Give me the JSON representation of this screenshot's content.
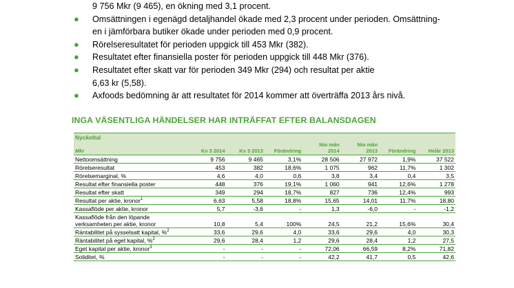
{
  "bullets": [
    {
      "has_dot": false,
      "lines": [
        "9 756 Mkr (9 465), en ökning med 3,1 procent."
      ]
    },
    {
      "has_dot": true,
      "lines": [
        "Omsättningen i egenägd detaljhandel ökade med 2,3 procent under perioden. Omsättning-",
        "en i jämförbara butiker ökade under perioden med 0,9 procent."
      ]
    },
    {
      "has_dot": true,
      "lines": [
        "Rörelseresultatet för perioden uppgick till 453 Mkr (382)."
      ]
    },
    {
      "has_dot": true,
      "lines": [
        "Resultatet efter finansiella poster för perioden uppgick till 448 Mkr (376)."
      ]
    },
    {
      "has_dot": true,
      "lines": [
        "Resultatet efter skatt var för perioden 349 Mkr (294) och resultat per aktie",
        "6,63 kr (5,58)."
      ]
    },
    {
      "has_dot": true,
      "lines": [
        "Axfoods bedömning är att resultatet för 2014 kommer att överträffa 2013 års nivå."
      ]
    }
  ],
  "heading": "INGA VÄSENTLIGA HÄNDELSER HAR INTRÄFFAT EFTER BALANSDAGEN",
  "table": {
    "title": "Nyckeltal",
    "unit": "Mkr",
    "columns": [
      "Kv 3 2014",
      "Kv 3 2013",
      "Förändring",
      "Nio mån 2014",
      "Nio mån 2013",
      "Förändring",
      "Helår 2013"
    ],
    "rows": [
      {
        "label": "Nettoomsättning",
        "sup": "",
        "values": [
          "9 756",
          "9 465",
          "3,1%",
          "28 506",
          "27 972",
          "1,9%",
          "37 522"
        ]
      },
      {
        "label": "Rörelseresultat",
        "sup": "",
        "values": [
          "453",
          "382",
          "18,6%",
          "1 075",
          "962",
          "11,7%",
          "1 302"
        ]
      },
      {
        "label": "Rörelsemarginal, %",
        "sup": "",
        "values": [
          "4,6",
          "4,0",
          "0,6",
          "3,8",
          "3,4",
          "0,4",
          "3,5"
        ]
      },
      {
        "label": "Resultat efter finansiella poster",
        "sup": "",
        "values": [
          "448",
          "376",
          "19,1%",
          "1 060",
          "941",
          "12,6%",
          "1 278"
        ]
      },
      {
        "label": "Resultat efter skatt",
        "sup": "",
        "values": [
          "349",
          "294",
          "18,7%",
          "827",
          "736",
          "12,4%",
          "993"
        ]
      },
      {
        "label": "Resultat per aktie, kronor",
        "sup": "1",
        "values": [
          "6,63",
          "5,58",
          "18,8%",
          "15,65",
          "14,01",
          "11,7%",
          "18,80"
        ]
      },
      {
        "label": "Kassaflöde per aktie, kronor",
        "sup": "",
        "values": [
          "5,7",
          "-3,6",
          "-",
          "1,3",
          "-6,0",
          "-",
          "-1,2"
        ]
      },
      {
        "label": "Kassaflöde från den löpande verksamheten per aktie, kronor",
        "sup": "",
        "values": [
          "10,8",
          "5,4",
          "100%",
          "24,5",
          "21,2",
          "15,6%",
          "30,4"
        ],
        "tall": true
      },
      {
        "label": "Räntabilitet på sysselsatt kapital, %",
        "sup": "2",
        "values": [
          "33,6",
          "29,6",
          "4,0",
          "33,6",
          "29,6",
          "4,0",
          "30,3"
        ]
      },
      {
        "label": "Räntabilitet på eget kapital, %",
        "sup": "2",
        "values": [
          "29,6",
          "28,4",
          "1,2",
          "29,6",
          "28,4",
          "1,2",
          "27,5"
        ]
      },
      {
        "label": "Eget kapital per aktie, kronor",
        "sup": "3",
        "values": [
          "-",
          "-",
          "-",
          "72,06",
          "66,59",
          "8,2%",
          "71,82"
        ]
      },
      {
        "label": "Soliditet, %",
        "sup": "",
        "values": [
          "-",
          "-",
          "-",
          "42,2",
          "41,7",
          "0,5",
          "42,6"
        ]
      }
    ]
  },
  "colors": {
    "accent": "#4aa436",
    "header_fill": "#d8e6cb"
  }
}
